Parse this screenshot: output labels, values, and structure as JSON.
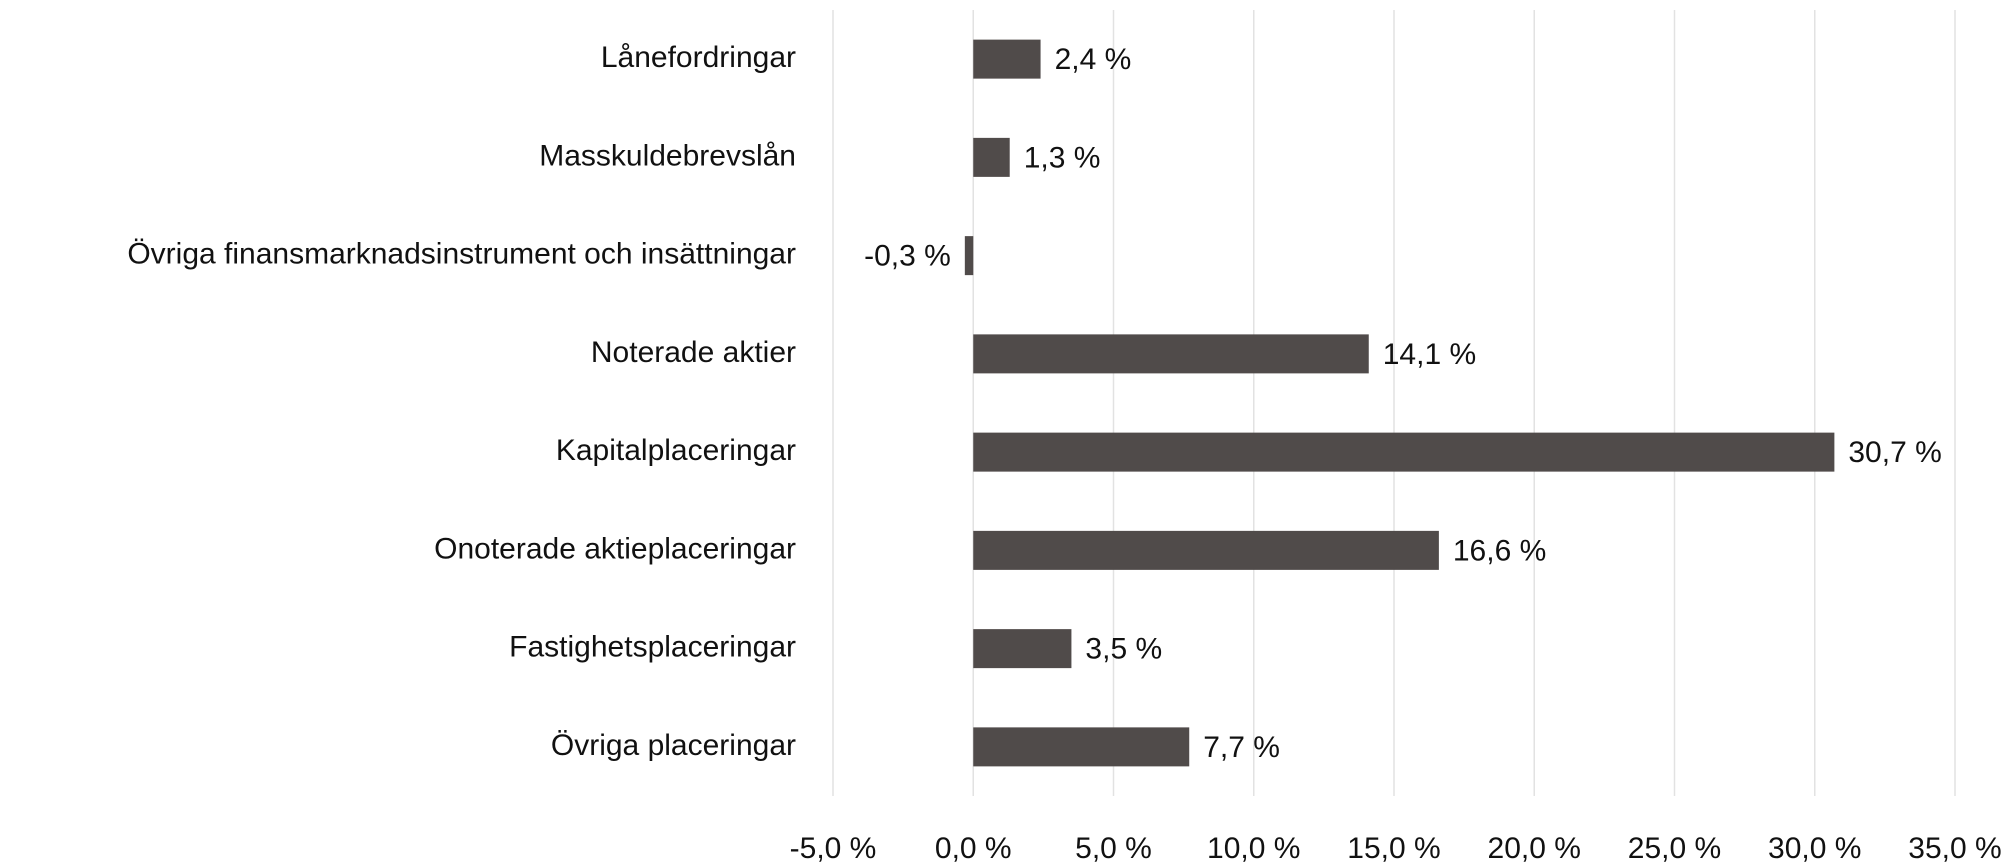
{
  "chart_data": {
    "type": "bar",
    "orientation": "horizontal",
    "categories": [
      "Lånefordringar",
      "Masskuldebrevslån",
      "Övriga finansmarknadsinstrument och insättningar",
      "Noterade aktier",
      "Kapitalplaceringar",
      "Onoterade aktieplaceringar",
      "Fastighetsplaceringar",
      "Övriga placeringar"
    ],
    "values": [
      2.4,
      1.3,
      -0.3,
      14.1,
      30.7,
      16.6,
      3.5,
      7.7
    ],
    "value_labels": [
      "2,4 %",
      "1,3 %",
      "-0,3 %",
      "14,1 %",
      "30,7 %",
      "16,6 %",
      "3,5 %",
      "7,7 %"
    ],
    "color": "#504b4a",
    "xlim": [
      -5,
      35
    ],
    "xticks": [
      {
        "value": -5,
        "label": "-5,0 %"
      },
      {
        "value": 0,
        "label": "0,0 %"
      },
      {
        "value": 5,
        "label": "5,0 %"
      },
      {
        "value": 10,
        "label": "10,0 %"
      },
      {
        "value": 15,
        "label": "15,0 %"
      },
      {
        "value": 20,
        "label": "20,0 %"
      },
      {
        "value": 25,
        "label": "25,0 %"
      },
      {
        "value": 30,
        "label": "30,0 %"
      },
      {
        "value": 35,
        "label": "35,0 %"
      }
    ],
    "grid": true
  }
}
